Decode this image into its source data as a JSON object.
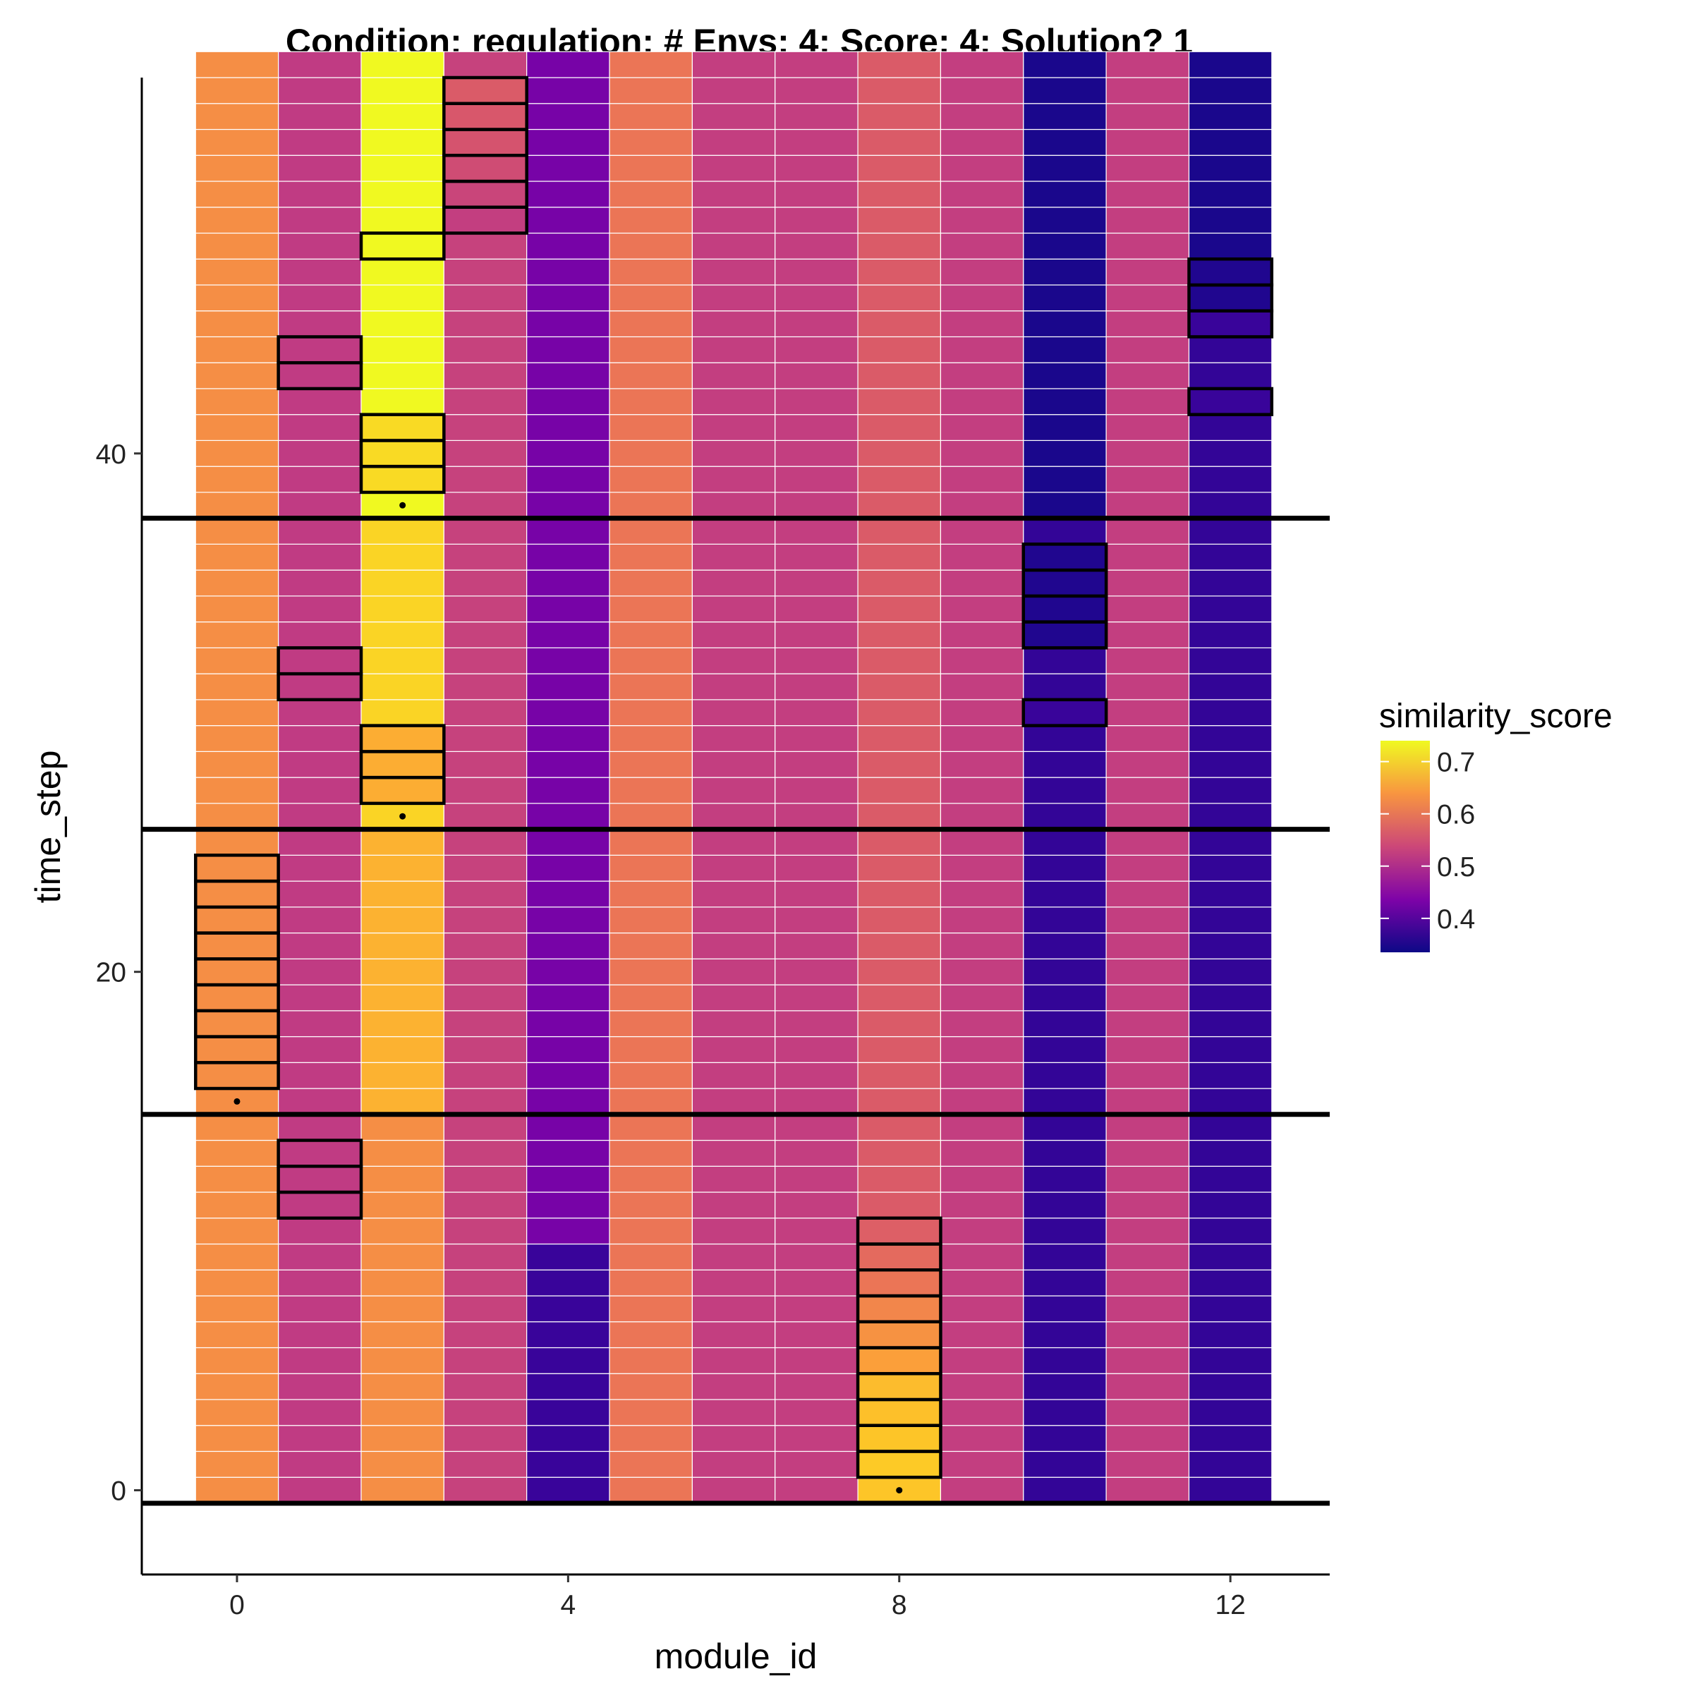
{
  "chart_data": {
    "type": "heatmap",
    "title": "Condition: regulation; # Envs: 4; Score: 4; Solution? 1",
    "xlabel": "module_id",
    "ylabel": "time_step",
    "x_ticks": [
      "0",
      "4",
      "8",
      "12"
    ],
    "y_ticks": [
      "0",
      "20",
      "40"
    ],
    "xlim": [
      -1.15,
      13.2
    ],
    "ylim": [
      -3.25,
      54.5
    ],
    "x": [
      0,
      1,
      2,
      3,
      4,
      5,
      6,
      7,
      8,
      9,
      10,
      11,
      12
    ],
    "time_steps": [
      0,
      55
    ],
    "grid": false,
    "legend": {
      "title": "similarity_score",
      "ticks": [
        "0.7",
        "0.6",
        "0.5",
        "0.4"
      ],
      "range": [
        0.335,
        0.74
      ],
      "placement": "right"
    },
    "columns": [
      {
        "module_id": 0,
        "segments": [
          {
            "from": 0,
            "to": 55,
            "value": 0.63
          }
        ]
      },
      {
        "module_id": 1,
        "segments": [
          {
            "from": 0,
            "to": 55,
            "value": 0.52
          }
        ]
      },
      {
        "module_id": 2,
        "segments": [
          {
            "from": 0,
            "to": 14,
            "value": 0.63
          },
          {
            "from": 15,
            "to": 25,
            "value": 0.67
          },
          {
            "from": 26,
            "to": 37,
            "value": 0.705
          },
          {
            "from": 38,
            "to": 55,
            "value": 0.74
          }
        ]
      },
      {
        "module_id": 3,
        "segments": [
          {
            "from": 0,
            "to": 55,
            "value": 0.53
          }
        ]
      },
      {
        "module_id": 4,
        "segments": [
          {
            "from": 0,
            "to": 9,
            "value": 0.37
          },
          {
            "from": 10,
            "to": 55,
            "value": 0.43
          }
        ]
      },
      {
        "module_id": 5,
        "segments": [
          {
            "from": 0,
            "to": 55,
            "value": 0.6
          }
        ]
      },
      {
        "module_id": 6,
        "segments": [
          {
            "from": 0,
            "to": 55,
            "value": 0.525
          }
        ]
      },
      {
        "module_id": 7,
        "segments": [
          {
            "from": 0,
            "to": 55,
            "value": 0.525
          }
        ]
      },
      {
        "module_id": 8,
        "segments": [
          {
            "from": 0,
            "to": 0,
            "value": 0.69
          },
          {
            "from": 1,
            "to": 55,
            "value": 0.565
          }
        ]
      },
      {
        "module_id": 9,
        "segments": [
          {
            "from": 0,
            "to": 55,
            "value": 0.525
          }
        ]
      },
      {
        "module_id": 10,
        "segments": [
          {
            "from": 0,
            "to": 37,
            "value": 0.365
          },
          {
            "from": 38,
            "to": 55,
            "value": 0.345
          }
        ]
      },
      {
        "module_id": 11,
        "segments": [
          {
            "from": 0,
            "to": 55,
            "value": 0.525
          }
        ]
      },
      {
        "module_id": 12,
        "segments": [
          {
            "from": 0,
            "to": 44,
            "value": 0.365
          },
          {
            "from": 45,
            "to": 55,
            "value": 0.345
          }
        ]
      }
    ],
    "highlighted_cells": [
      {
        "module_id": 0,
        "time_steps": [
          16,
          17,
          18,
          19,
          20,
          21,
          22,
          23,
          24
        ],
        "values": [
          0.63,
          0.63,
          0.63,
          0.63,
          0.63,
          0.63,
          0.63,
          0.63,
          0.63
        ]
      },
      {
        "module_id": 1,
        "time_steps": [
          11,
          12,
          13
        ],
        "values": [
          0.52,
          0.52,
          0.52
        ]
      },
      {
        "module_id": 1,
        "time_steps": [
          31,
          32
        ],
        "values": [
          0.52,
          0.52
        ]
      },
      {
        "module_id": 1,
        "time_steps": [
          43,
          44
        ],
        "values": [
          0.52,
          0.52
        ]
      },
      {
        "module_id": 2,
        "time_steps": [
          27,
          28,
          29
        ],
        "values": [
          0.665,
          0.665,
          0.665
        ]
      },
      {
        "module_id": 2,
        "time_steps": [
          39,
          40,
          41
        ],
        "values": [
          0.71,
          0.71,
          0.71
        ]
      },
      {
        "module_id": 2,
        "time_steps": [
          48
        ],
        "values": [
          0.74
        ]
      },
      {
        "module_id": 3,
        "time_steps": [
          49,
          50,
          51,
          52,
          53,
          54
        ],
        "values": [
          0.525,
          0.535,
          0.545,
          0.555,
          0.56,
          0.565
        ]
      },
      {
        "module_id": 8,
        "time_steps": [
          1,
          2,
          3,
          4,
          5,
          6,
          7,
          8,
          9,
          10
        ],
        "values": [
          0.695,
          0.69,
          0.685,
          0.68,
          0.65,
          0.635,
          0.62,
          0.6,
          0.585,
          0.57
        ]
      },
      {
        "module_id": 10,
        "time_steps": [
          30
        ],
        "values": [
          0.37
        ]
      },
      {
        "module_id": 10,
        "time_steps": [
          33,
          34,
          35,
          36
        ],
        "values": [
          0.35,
          0.35,
          0.35,
          0.35
        ]
      },
      {
        "module_id": 12,
        "time_steps": [
          42
        ],
        "values": [
          0.37
        ]
      },
      {
        "module_id": 12,
        "time_steps": [
          45,
          46,
          47
        ],
        "values": [
          0.37,
          0.35,
          0.35
        ]
      }
    ],
    "dots": [
      {
        "module_id": 0,
        "time_step": 15
      },
      {
        "module_id": 2,
        "time_step": 26
      },
      {
        "module_id": 2,
        "time_step": 38
      },
      {
        "module_id": 8,
        "time_step": 0
      }
    ],
    "reference_lines": [
      -0.5,
      14.5,
      25.5,
      37.5
    ]
  }
}
